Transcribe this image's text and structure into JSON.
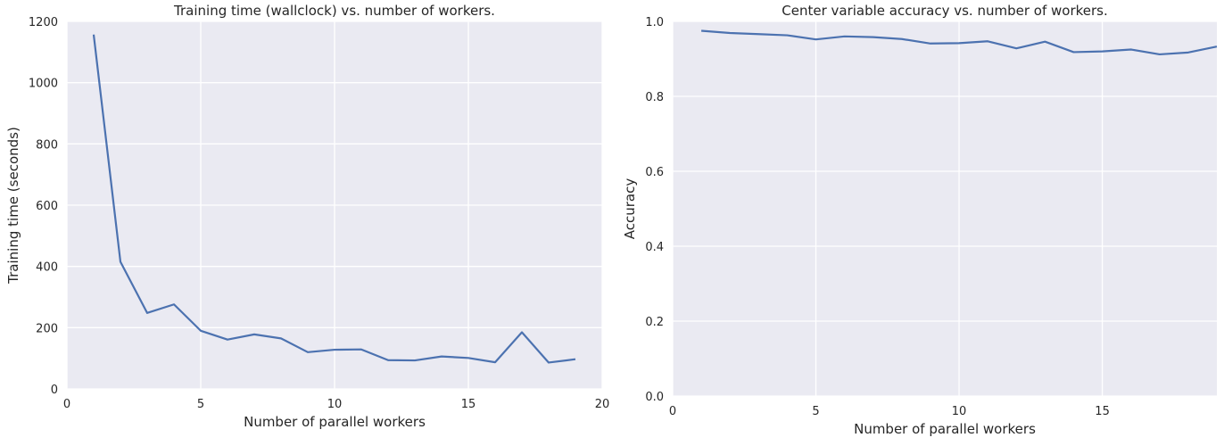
{
  "style": {
    "plot_bg": "#eaeaf2",
    "grid_color": "#ffffff",
    "line_color": "#4c72b0",
    "text_color": "#262626"
  },
  "chart_data": [
    {
      "type": "line",
      "title": "Training time (wallclock) vs. number of workers.",
      "xlabel": "Number of parallel workers",
      "ylabel": "Training time (seconds)",
      "xlim": [
        0,
        20
      ],
      "ylim": [
        0,
        1200
      ],
      "xticks": [
        0,
        5,
        10,
        15,
        20
      ],
      "xtick_labels": [
        "0",
        "5",
        "10",
        "15",
        "20"
      ],
      "yticks": [
        0,
        200,
        400,
        600,
        800,
        1000,
        1200
      ],
      "ytick_labels": [
        "0",
        "200",
        "400",
        "600",
        "800",
        "1000",
        "1200"
      ],
      "grid": true,
      "series": [
        {
          "x": [
            1,
            2,
            3,
            4,
            5,
            6,
            7,
            8,
            9,
            10,
            11,
            12,
            13,
            14,
            15,
            16,
            17,
            18,
            19
          ],
          "values": [
            1157,
            415,
            248,
            276,
            190,
            161,
            178,
            165,
            120,
            128,
            129,
            94,
            93,
            106,
            101,
            87,
            185,
            86,
            97
          ]
        }
      ]
    },
    {
      "type": "line",
      "title": "Center variable accuracy vs. number of workers.",
      "xlabel": "Number of parallel workers",
      "ylabel": "Accuracy",
      "xlim": [
        0,
        19
      ],
      "ylim": [
        0.0,
        1.0
      ],
      "xticks": [
        0,
        5,
        10,
        15
      ],
      "xtick_labels": [
        "0",
        "5",
        "10",
        "15"
      ],
      "yticks": [
        0.0,
        0.2,
        0.4,
        0.6,
        0.8,
        1.0
      ],
      "ytick_labels": [
        "0.0",
        "0.2",
        "0.4",
        "0.6",
        "0.8",
        "1.0"
      ],
      "grid": true,
      "series": [
        {
          "x": [
            1,
            2,
            3,
            4,
            5,
            6,
            7,
            8,
            9,
            10,
            11,
            12,
            13,
            14,
            15,
            16,
            17,
            18,
            19
          ],
          "values": [
            0.975,
            0.969,
            0.966,
            0.963,
            0.952,
            0.96,
            0.958,
            0.953,
            0.941,
            0.942,
            0.947,
            0.928,
            0.946,
            0.918,
            0.92,
            0.925,
            0.912,
            0.917,
            0.933
          ]
        }
      ]
    }
  ]
}
